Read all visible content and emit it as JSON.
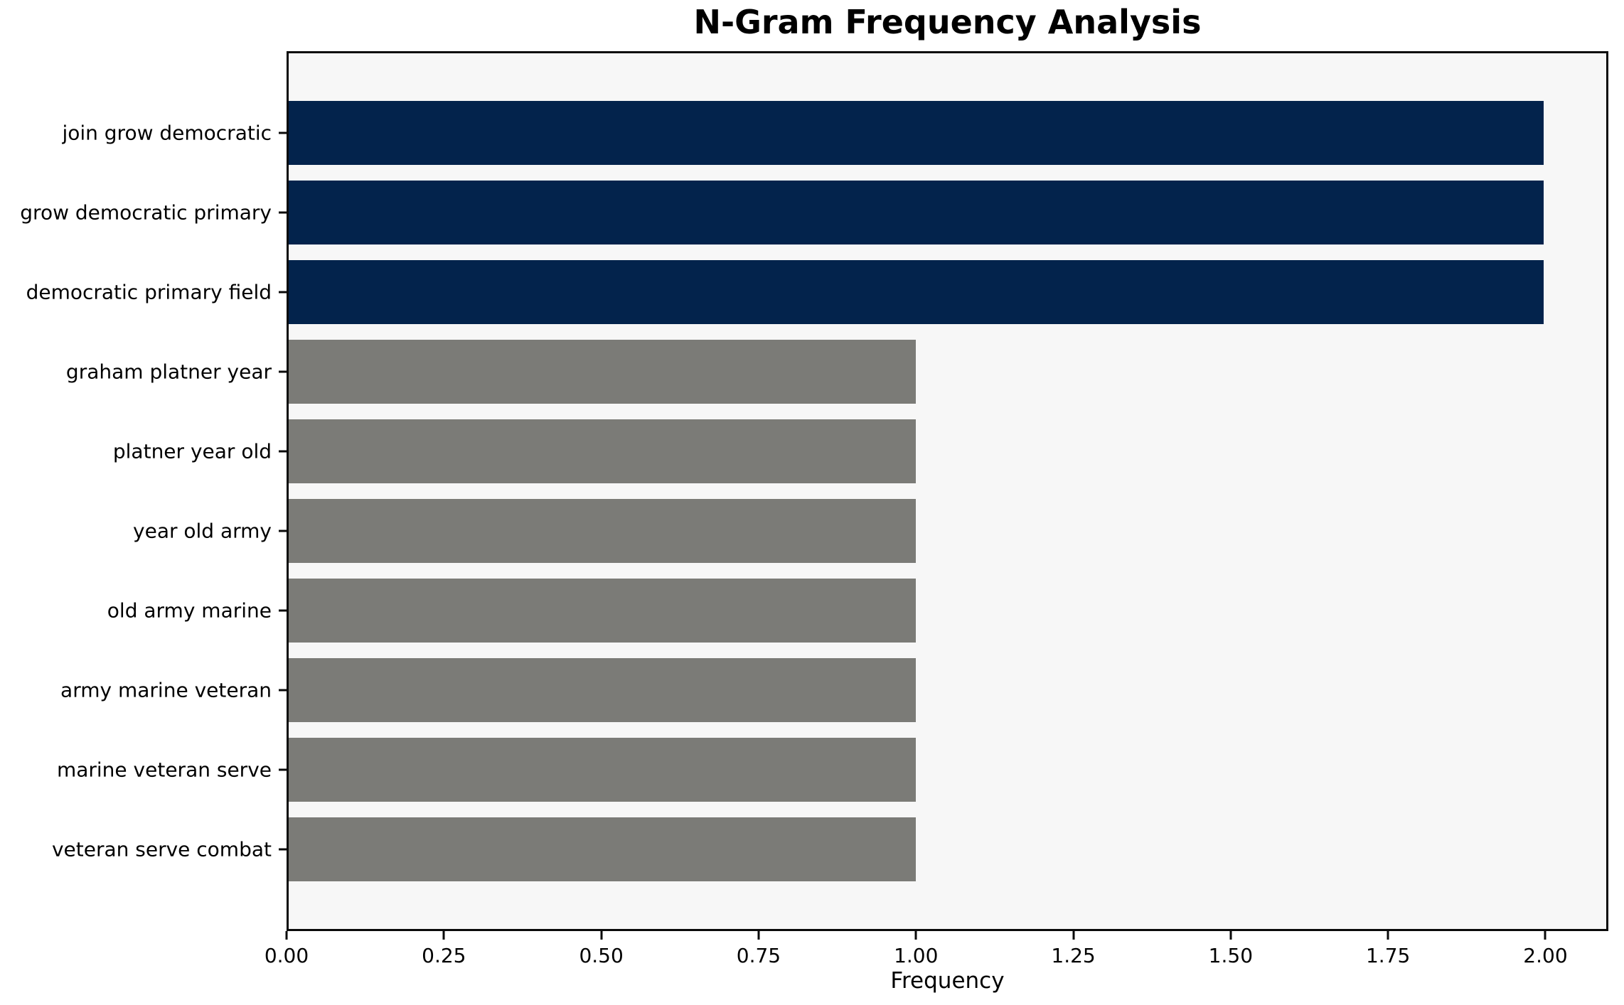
{
  "figure": {
    "background": "#ffffff",
    "plot_background": "#f7f7f7",
    "spine_color": "#0a0a0a"
  },
  "chart_data": {
    "type": "bar",
    "orientation": "horizontal",
    "title": "N-Gram Frequency Analysis",
    "xlabel": "Frequency",
    "ylabel": "",
    "grid": false,
    "legend": null,
    "categories": [
      "join grow democratic",
      "grow democratic primary",
      "democratic primary field",
      "graham platner year",
      "platner year old",
      "year old army",
      "old army marine",
      "army marine veteran",
      "marine veteran serve",
      "veteran serve combat"
    ],
    "values": [
      2,
      2,
      2,
      1,
      1,
      1,
      1,
      1,
      1,
      1
    ],
    "bar_colors": [
      "#03234c",
      "#03234c",
      "#03234c",
      "#7b7b77",
      "#7b7b77",
      "#7b7b77",
      "#7b7b77",
      "#7b7b77",
      "#7b7b77",
      "#7b7b77"
    ],
    "xlim": [
      0,
      2.1
    ],
    "xticks": [
      0,
      0.25,
      0.5,
      0.75,
      1.0,
      1.25,
      1.5,
      1.75,
      2.0
    ],
    "xtick_labels": [
      "0.00",
      "0.25",
      "0.50",
      "0.75",
      "1.00",
      "1.25",
      "1.50",
      "1.75",
      "2.00"
    ]
  }
}
